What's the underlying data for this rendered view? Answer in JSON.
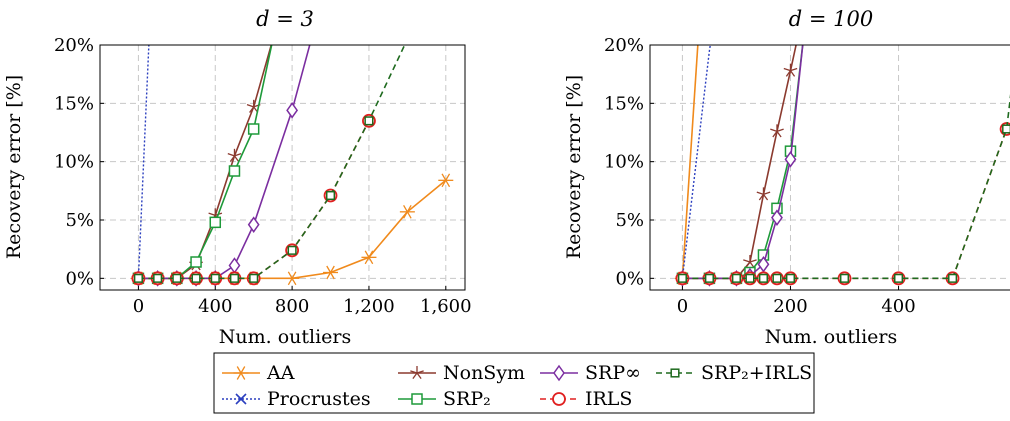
{
  "colors": {
    "AA": "#f08a1c",
    "Procrustes": "#2b3fbf",
    "NonSym": "#8b3a2f",
    "SRP2": "#1e9a3a",
    "SRPinf": "#7b2ea0",
    "IRLS": "#e02020",
    "SRP2_IRLS": "#1e6a1e",
    "grid": "#c8c8c8"
  },
  "legend": {
    "AA": "AA",
    "Procrustes": "Procrustes",
    "NonSym": "NonSym",
    "SRP2": "SRP₂",
    "SRPinf": "SRP∞",
    "IRLS": "IRLS",
    "SRP2_IRLS": "SRP₂+IRLS"
  },
  "chart_data": [
    {
      "type": "line",
      "title": "d = 3",
      "xlabel": "Num. outliers",
      "ylabel": "Recovery error [%]",
      "xticks": [
        "0",
        "400",
        "800",
        "1,200",
        "1,600"
      ],
      "yticks": [
        "0%",
        "5%",
        "10%",
        "15%",
        "20%"
      ],
      "xlim": [
        -200,
        1700
      ],
      "ylim": [
        -1,
        20
      ],
      "series": [
        {
          "name": "AA",
          "key": "AA",
          "x": [
            0,
            100,
            200,
            300,
            400,
            500,
            600,
            800,
            1000,
            1200,
            1400,
            1600
          ],
          "y": [
            0,
            0,
            0,
            0,
            0,
            0,
            0,
            0,
            0.5,
            1.8,
            5.7,
            8.4
          ]
        },
        {
          "name": "Procrustes",
          "key": "Procrustes",
          "x": [
            0,
            60
          ],
          "y": [
            0,
            22
          ]
        },
        {
          "name": "NonSym",
          "key": "NonSym",
          "x": [
            0,
            100,
            200,
            300,
            400,
            500,
            600,
            700
          ],
          "y": [
            0,
            0,
            0,
            1.2,
            5.4,
            10.5,
            14.7,
            20.5
          ]
        },
        {
          "name": "SRP₂",
          "key": "SRP2",
          "x": [
            0,
            100,
            200,
            300,
            400,
            500,
            600,
            700
          ],
          "y": [
            0,
            0,
            0,
            1.4,
            4.8,
            9.2,
            12.8,
            20.5
          ]
        },
        {
          "name": "SRP∞",
          "key": "SRPinf",
          "x": [
            0,
            100,
            200,
            300,
            400,
            500,
            600,
            800,
            900
          ],
          "y": [
            0,
            0,
            0,
            0,
            0,
            1.1,
            4.6,
            14.4,
            20.5
          ]
        },
        {
          "name": "IRLS",
          "key": "IRLS",
          "x": [
            0,
            100,
            200,
            300,
            400,
            500,
            600,
            800,
            1000,
            1200
          ],
          "y": [
            0,
            0,
            0,
            0,
            0,
            0,
            0,
            2.4,
            7.1,
            13.5
          ]
        },
        {
          "name": "SRP₂+IRLS",
          "key": "SRP2_IRLS",
          "x": [
            0,
            100,
            200,
            300,
            400,
            500,
            600,
            800,
            1000,
            1200,
            1400
          ],
          "y": [
            0,
            0,
            0,
            0,
            0,
            0,
            0,
            2.4,
            7.1,
            13.5,
            20.5
          ]
        }
      ]
    },
    {
      "type": "line",
      "title": "d = 100",
      "xlabel": "Num. outliers",
      "ylabel": "Recovery error [%]",
      "xticks": [
        "0",
        "200",
        "400"
      ],
      "yticks": [
        "0%",
        "5%",
        "10%",
        "15%",
        "20%"
      ],
      "xlim": [
        -60,
        610
      ],
      "ylim": [
        -1,
        20
      ],
      "series": [
        {
          "name": "AA",
          "key": "AA",
          "x": [
            0,
            30
          ],
          "y": [
            0,
            21
          ]
        },
        {
          "name": "Procrustes",
          "key": "Procrustes",
          "x": [
            0,
            50,
            55
          ],
          "y": [
            0,
            19.5,
            21
          ]
        },
        {
          "name": "NonSym",
          "key": "NonSym",
          "x": [
            0,
            50,
            100,
            125,
            150,
            175,
            200,
            215
          ],
          "y": [
            0,
            0,
            0,
            1.4,
            7.2,
            12.6,
            17.8,
            21
          ]
        },
        {
          "name": "SRP₂",
          "key": "SRP2",
          "x": [
            0,
            50,
            100,
            125,
            150,
            175,
            200,
            225
          ],
          "y": [
            0,
            0,
            0,
            0.5,
            2.0,
            6.0,
            10.9,
            21
          ]
        },
        {
          "name": "SRP∞",
          "key": "SRPinf",
          "x": [
            0,
            50,
            100,
            125,
            150,
            175,
            200,
            225
          ],
          "y": [
            0,
            0,
            0,
            0.2,
            1.2,
            5.2,
            10.2,
            21
          ]
        },
        {
          "name": "IRLS",
          "key": "IRLS",
          "x": [
            0,
            50,
            100,
            125,
            150,
            175,
            200,
            300,
            400,
            500,
            600
          ],
          "y": [
            0,
            0,
            0,
            0,
            0,
            0,
            0,
            0,
            0,
            0,
            12.8
          ]
        },
        {
          "name": "SRP₂+IRLS",
          "key": "SRP2_IRLS",
          "x": [
            0,
            50,
            100,
            125,
            150,
            175,
            200,
            300,
            400,
            500,
            600,
            620
          ],
          "y": [
            0,
            0,
            0,
            0,
            0,
            0,
            0,
            0,
            0,
            0,
            12.8,
            20.5
          ]
        }
      ]
    }
  ]
}
